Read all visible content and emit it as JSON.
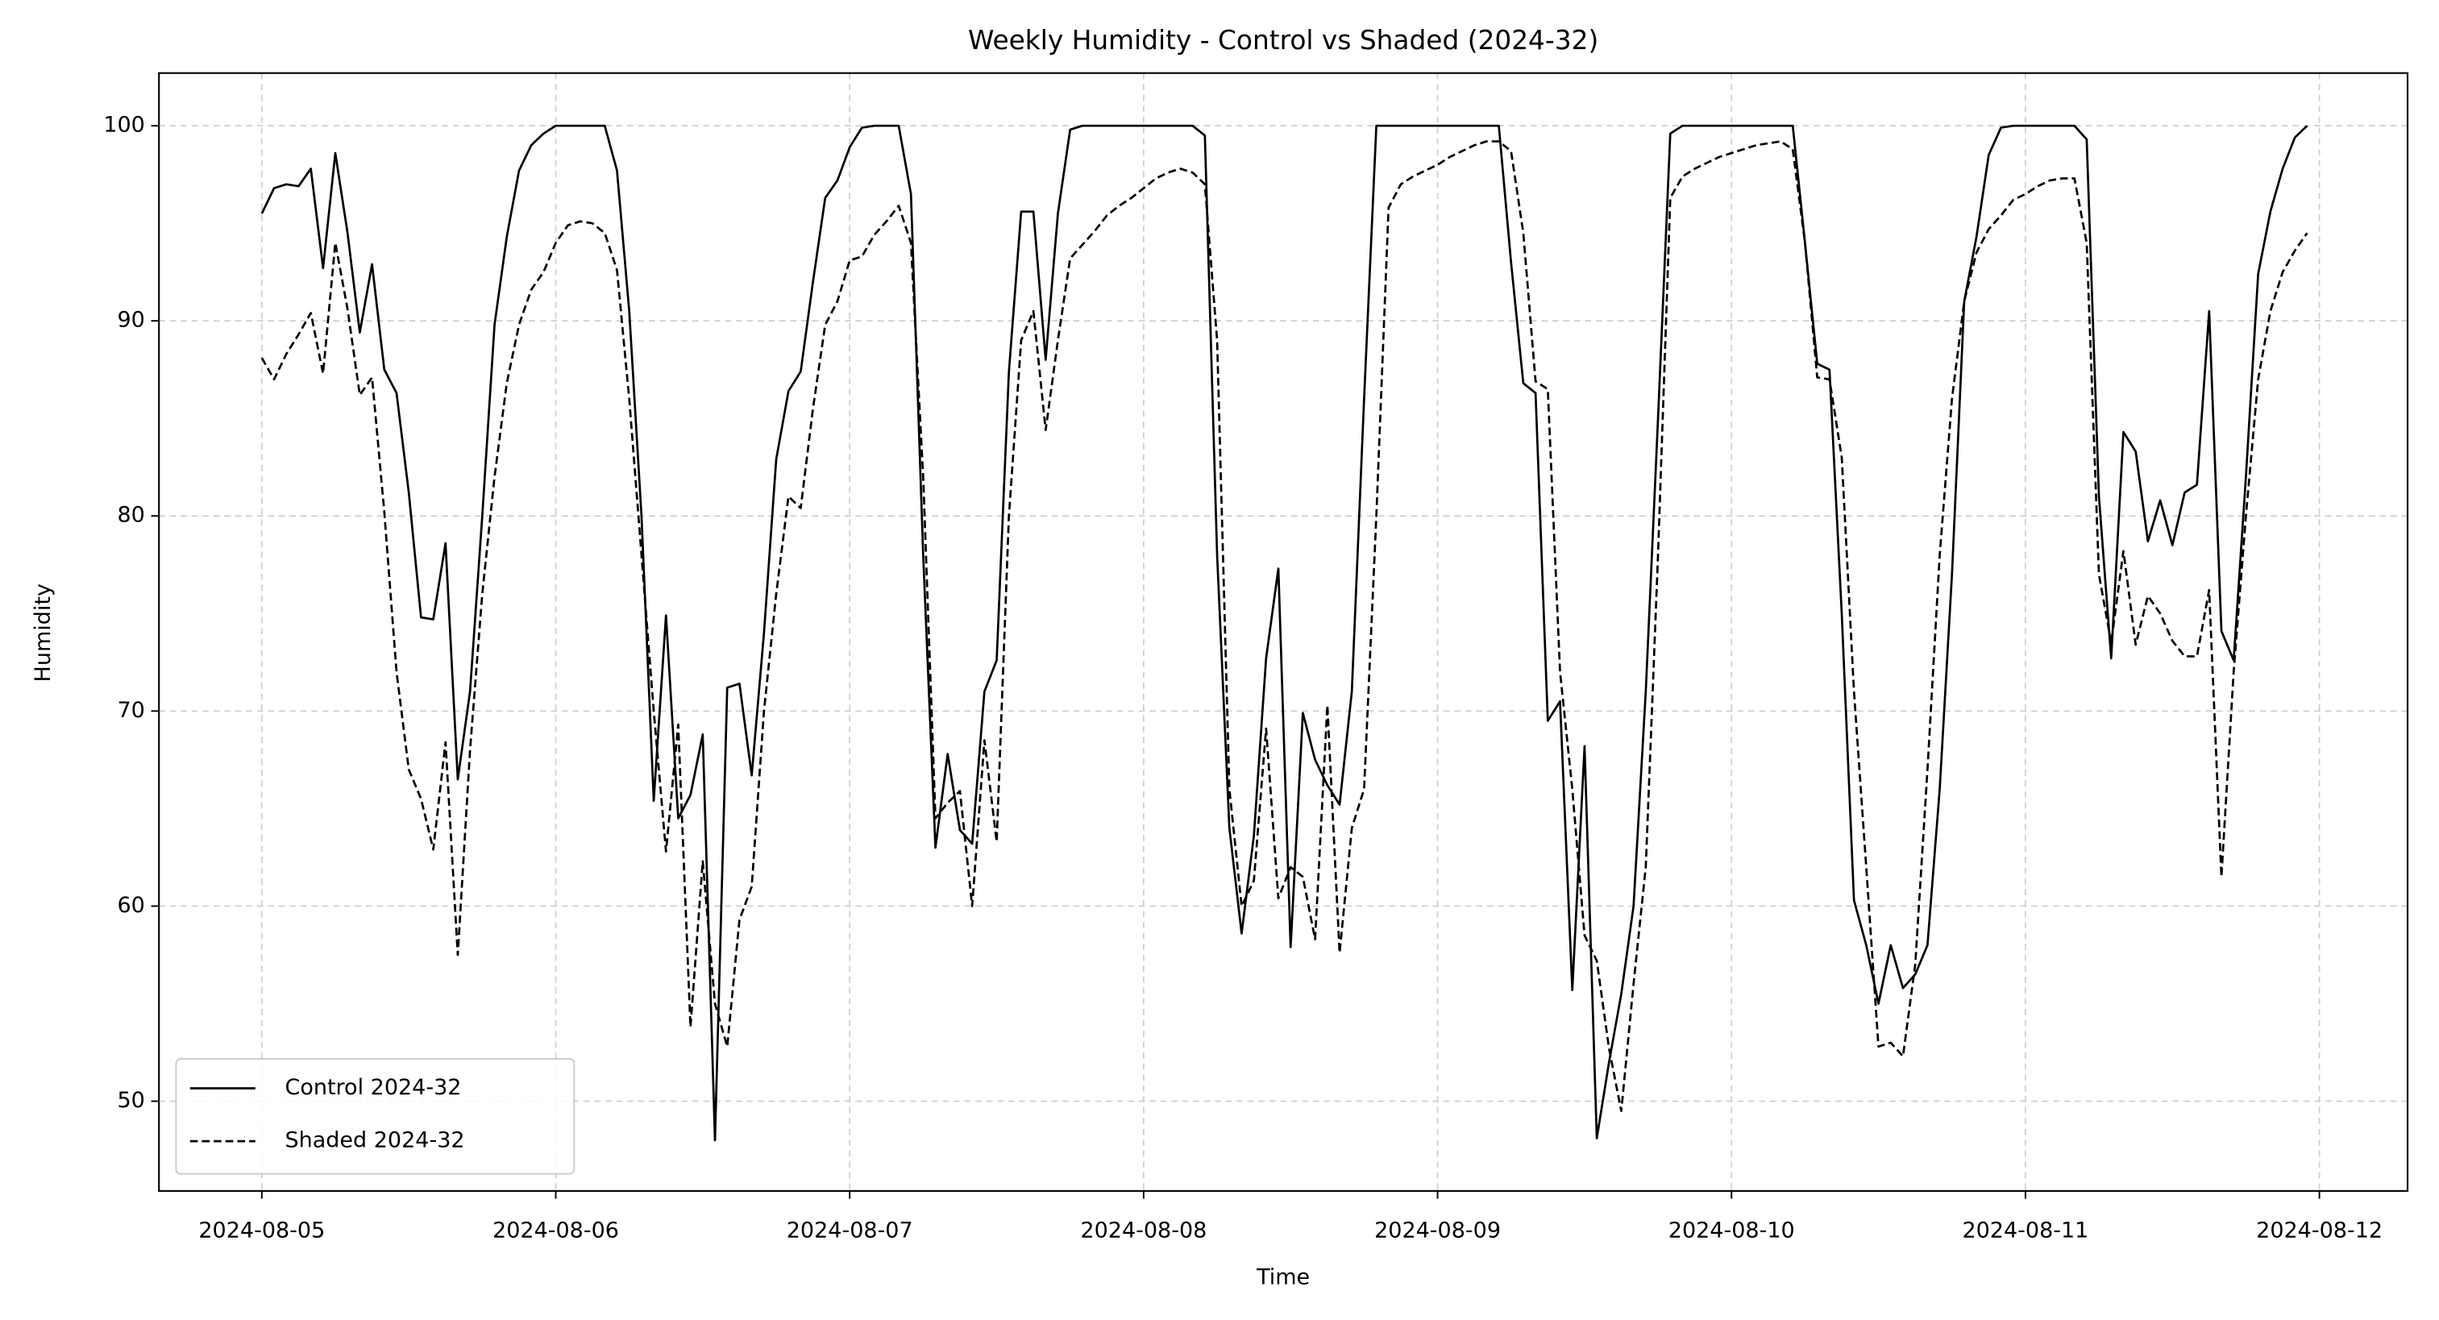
{
  "chart_data": {
    "type": "line",
    "title": "Weekly Humidity - Control vs Shaded (2024-32)",
    "x_label": "Time",
    "y_label": "Humidity",
    "x": [
      0,
      1,
      2,
      3,
      4,
      5,
      6,
      7,
      8,
      9,
      10,
      11,
      12,
      13,
      14,
      15,
      16,
      17,
      18,
      19,
      20,
      21,
      22,
      23,
      24,
      25,
      26,
      27,
      28,
      29,
      30,
      31,
      32,
      33,
      34,
      35,
      36,
      37,
      38,
      39,
      40,
      41,
      42,
      43,
      44,
      45,
      46,
      47,
      48,
      49,
      50,
      51,
      52,
      53,
      54,
      55,
      56,
      57,
      58,
      59,
      60,
      61,
      62,
      63,
      64,
      65,
      66,
      67,
      68,
      69,
      70,
      71,
      72,
      73,
      74,
      75,
      76,
      77,
      78,
      79,
      80,
      81,
      82,
      83,
      84,
      85,
      86,
      87,
      88,
      89,
      90,
      91,
      92,
      93,
      94,
      95,
      96,
      97,
      98,
      99,
      100,
      101,
      102,
      103,
      104,
      105,
      106,
      107,
      108,
      109,
      110,
      111,
      112,
      113,
      114,
      115,
      116,
      117,
      118,
      119,
      120,
      121,
      122,
      123,
      124,
      125,
      126,
      127,
      128,
      129,
      130,
      131,
      132,
      133,
      134,
      135,
      136,
      137,
      138,
      139,
      140,
      141,
      142,
      143,
      144,
      145,
      146,
      147,
      148,
      149,
      150,
      151,
      152,
      153,
      154,
      155,
      156,
      157,
      158,
      159,
      160,
      161,
      162,
      163,
      164,
      165,
      166,
      167
    ],
    "series": [
      {
        "name": "Control 2024-32",
        "color": "#000000",
        "linestyle": "solid",
        "values": [
          95.5,
          96.8,
          97.0,
          96.9,
          97.8,
          92.7,
          98.6,
          94.5,
          89.4,
          92.9,
          87.5,
          86.3,
          81.2,
          74.8,
          74.7,
          78.6,
          66.5,
          71,
          80,
          89.8,
          94.3,
          97.7,
          99,
          99.6,
          100,
          100,
          100,
          100,
          100,
          97.7,
          90.5,
          80,
          65.4,
          74.9,
          64.5,
          65.7,
          68.8,
          48,
          71.2,
          71.4,
          66.7,
          74,
          82.9,
          86.4,
          87.4,
          92,
          96.3,
          97.2,
          98.9,
          99.9,
          100,
          100,
          100,
          96.5,
          78,
          63,
          67.8,
          63.9,
          63.2,
          71,
          72.6,
          87.4,
          95.6,
          95.6,
          88,
          95.5,
          99.8,
          100,
          100,
          100,
          100,
          100,
          100,
          100,
          100,
          100,
          100,
          99.5,
          78,
          64,
          58.6,
          63.6,
          72.7,
          77.3,
          57.9,
          69.9,
          67.5,
          66.2,
          65.2,
          71,
          86,
          100,
          100,
          100,
          100,
          100,
          100,
          100,
          100,
          100,
          100,
          100,
          93,
          86.8,
          86.3,
          69.5,
          70.5,
          55.7,
          68.2,
          48.1,
          52,
          55.5,
          60,
          71,
          85,
          99.6,
          100,
          100,
          100,
          100,
          100,
          100,
          100,
          100,
          100,
          100,
          94,
          87.8,
          87.5,
          75,
          60.3,
          58,
          55,
          58,
          55.8,
          56.5,
          58,
          66,
          77,
          91,
          94.3,
          98.5,
          99.9,
          100,
          100,
          100,
          100,
          100,
          100,
          99.3,
          81,
          72.7,
          84.3,
          83.3,
          78.7,
          80.8,
          78.5,
          81.2,
          81.6,
          90.5,
          74.1,
          72.6,
          82,
          92.4,
          95.6,
          97.8,
          99.4,
          100
        ]
      },
      {
        "name": "Shaded 2024-32",
        "color": "#000000",
        "linestyle": "dashed",
        "values": [
          88.1,
          87.0,
          88.3,
          89.3,
          90.4,
          87.3,
          94.0,
          90.6,
          86.2,
          87.1,
          80.2,
          72,
          67,
          65.5,
          62.9,
          68.4,
          57.5,
          68,
          76,
          82,
          86.8,
          89.8,
          91.6,
          92.5,
          94,
          94.9,
          95.1,
          95,
          94.5,
          92.6,
          86,
          78,
          70,
          62.8,
          69.3,
          53.8,
          62.3,
          55,
          52.8,
          59.3,
          61,
          70,
          76,
          81,
          80.4,
          85.5,
          89.8,
          91,
          93.1,
          93.3,
          94.4,
          95.1,
          95.9,
          94,
          82,
          64.5,
          65.3,
          65.9,
          60,
          68.5,
          63.3,
          80,
          89,
          90.5,
          84.4,
          89,
          93.2,
          93.9,
          94.6,
          95.4,
          95.9,
          96.3,
          96.8,
          97.3,
          97.6,
          97.8,
          97.6,
          97,
          89,
          66,
          60,
          61.3,
          69.1,
          60.4,
          62,
          61.5,
          58.3,
          70.3,
          57.6,
          64,
          66,
          80,
          95.8,
          97,
          97.4,
          97.7,
          98,
          98.4,
          98.7,
          99,
          99.2,
          99.2,
          98.7,
          94.5,
          86.9,
          86.5,
          72,
          66,
          58.5,
          57.2,
          52.7,
          49.5,
          56,
          62,
          78,
          96.3,
          97.4,
          97.8,
          98.1,
          98.4,
          98.6,
          98.8,
          99,
          99.1,
          99.2,
          98.8,
          94,
          87.1,
          87,
          83,
          71,
          62,
          52.8,
          53,
          52.3,
          57,
          67,
          78,
          86,
          91,
          93.5,
          94.7,
          95.4,
          96.2,
          96.5,
          96.9,
          97.2,
          97.3,
          97.3,
          94,
          77,
          73.5,
          78.2,
          73.4,
          75.9,
          75,
          73.6,
          72.8,
          72.8,
          76.2,
          61.5,
          72,
          80,
          87,
          90.5,
          92.5,
          93.6,
          94.5
        ]
      }
    ],
    "xlim": [
      -8.4,
      175.2
    ],
    "xticks": [
      {
        "value": 0,
        "label": "2024-08-05"
      },
      {
        "value": 24,
        "label": "2024-08-06"
      },
      {
        "value": 48,
        "label": "2024-08-07"
      },
      {
        "value": 72,
        "label": "2024-08-08"
      },
      {
        "value": 96,
        "label": "2024-08-09"
      },
      {
        "value": 120,
        "label": "2024-08-10"
      },
      {
        "value": 144,
        "label": "2024-08-11"
      },
      {
        "value": 168,
        "label": "2024-08-12"
      }
    ],
    "ylim": [
      45.4,
      102.7
    ],
    "yticks": [
      50,
      60,
      70,
      80,
      90,
      100
    ],
    "grid": true,
    "legend": "lower left"
  }
}
